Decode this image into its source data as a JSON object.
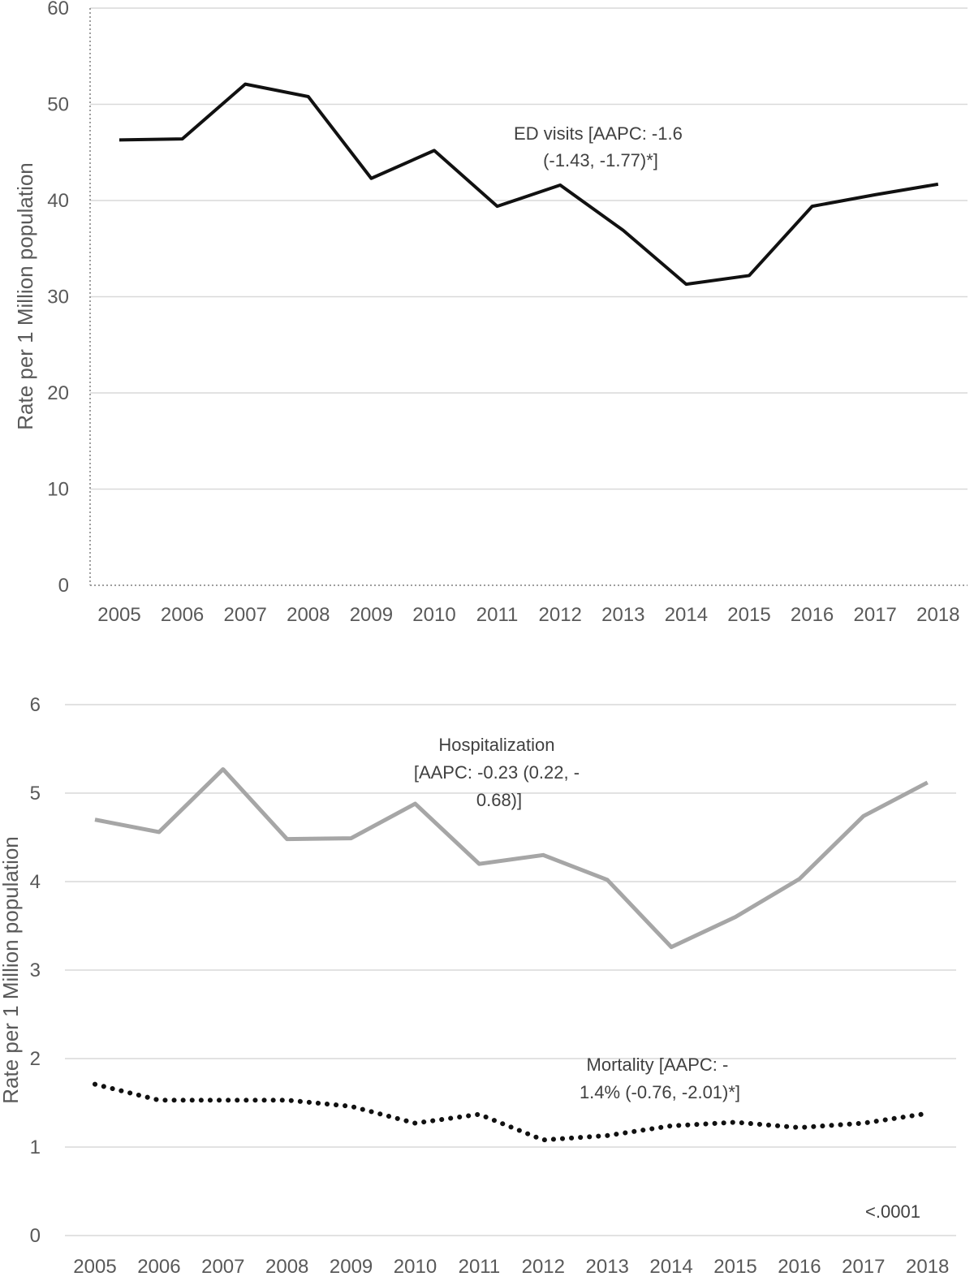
{
  "chart_data": [
    {
      "type": "line",
      "xlabel": "",
      "ylabel": "Rate per 1 Million population",
      "categories": [
        "2005",
        "2006",
        "2007",
        "2008",
        "2009",
        "2010",
        "2011",
        "2012",
        "2013",
        "2014",
        "2015",
        "2016",
        "2017",
        "2018"
      ],
      "ylim": [
        0,
        60
      ],
      "yticks": [
        "0",
        "10",
        "20",
        "30",
        "40",
        "50",
        "60"
      ],
      "grid": true,
      "series": [
        {
          "name": "ED visits",
          "values": [
            46.3,
            46.4,
            52.1,
            50.8,
            42.3,
            45.2,
            39.4,
            41.6,
            36.9,
            31.3,
            32.2,
            39.4,
            40.6,
            41.7
          ],
          "color": "#111111",
          "style": "solid",
          "label_lines": [
            "ED visits [AAPC: -1.6",
            "(-1.43, -1.77)*]"
          ]
        }
      ]
    },
    {
      "type": "line",
      "xlabel": "",
      "ylabel": "Rate per 1 Million population",
      "categories": [
        "2005",
        "2006",
        "2007",
        "2008",
        "2009",
        "2010",
        "2011",
        "2012",
        "2013",
        "2014",
        "2015",
        "2016",
        "2017",
        "2018"
      ],
      "ylim": [
        0,
        6
      ],
      "yticks": [
        "0",
        "1",
        "2",
        "3",
        "4",
        "5",
        "6"
      ],
      "grid": true,
      "series": [
        {
          "name": "Hospitalization",
          "values": [
            4.7,
            4.56,
            5.27,
            4.48,
            4.49,
            4.88,
            4.2,
            4.3,
            4.02,
            3.26,
            3.6,
            4.03,
            4.74,
            5.12
          ],
          "color": "#a6a6a6",
          "style": "solid",
          "label_lines": [
            "Hospitalization",
            "[AAPC: -0.23 (0.22, -",
            "0.68)]"
          ]
        },
        {
          "name": "Mortality",
          "values": [
            1.71,
            1.53,
            1.53,
            1.53,
            1.46,
            1.27,
            1.37,
            1.08,
            1.13,
            1.24,
            1.28,
            1.22,
            1.27,
            1.38
          ],
          "color": "#111111",
          "style": "dotted",
          "label_lines": [
            "Mortality [AAPC: -",
            "1.4% (-0.76, -2.01)*]"
          ]
        }
      ],
      "annotations": [
        "<.0001"
      ]
    }
  ]
}
